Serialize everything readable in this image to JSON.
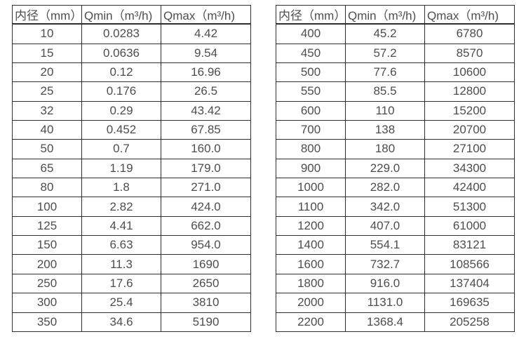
{
  "page": {
    "background_color": "#ffffff",
    "text_color": "#4d4d4d",
    "border_color": "#2e2e2e"
  },
  "tables": [
    {
      "name": "small-diameter-flow-table",
      "headers": [
        "内径（mm）",
        "Qmin（m³/h)",
        "Qmax（m³/h)"
      ],
      "rows": [
        [
          "10",
          "0.0283",
          "4.42"
        ],
        [
          "15",
          "0.0636",
          "9.54"
        ],
        [
          "20",
          "0.12",
          "16.96"
        ],
        [
          "25",
          "0.176",
          "26.5"
        ],
        [
          "32",
          "0.29",
          "43.42"
        ],
        [
          "40",
          "0.452",
          "67.85"
        ],
        [
          "50",
          "0.7",
          "160.0"
        ],
        [
          "65",
          "1.19",
          "179.0"
        ],
        [
          "80",
          "1.8",
          "271.0"
        ],
        [
          "100",
          "2.82",
          "424.0"
        ],
        [
          "125",
          "4.41",
          "662.0"
        ],
        [
          "150",
          "6.63",
          "954.0"
        ],
        [
          "200",
          "11.3",
          "1690"
        ],
        [
          "250",
          "17.6",
          "2650"
        ],
        [
          "300",
          "25.4",
          "3810"
        ],
        [
          "350",
          "34.6",
          "5190"
        ]
      ]
    },
    {
      "name": "large-diameter-flow-table",
      "headers": [
        "内径（mm）",
        "Qmin（m³/h)",
        "Qmax（m³/h)"
      ],
      "rows": [
        [
          "400",
          "45.2",
          "6780"
        ],
        [
          "450",
          "57.2",
          "8570"
        ],
        [
          "500",
          "77.6",
          "10600"
        ],
        [
          "550",
          "85.5",
          "12800"
        ],
        [
          "600",
          "110",
          "15200"
        ],
        [
          "700",
          "138",
          "20700"
        ],
        [
          "800",
          "180",
          "27100"
        ],
        [
          "900",
          "229.0",
          "34300"
        ],
        [
          "1000",
          "282.0",
          "42400"
        ],
        [
          "1100",
          "342.0",
          "51300"
        ],
        [
          "1200",
          "407.0",
          "61000"
        ],
        [
          "1400",
          "554.1",
          "83121"
        ],
        [
          "1600",
          "732.7",
          "108566"
        ],
        [
          "1800",
          "916.0",
          "137404"
        ],
        [
          "2000",
          "1131.0",
          "169635"
        ],
        [
          "2200",
          "1368.4",
          "205258"
        ]
      ]
    }
  ]
}
